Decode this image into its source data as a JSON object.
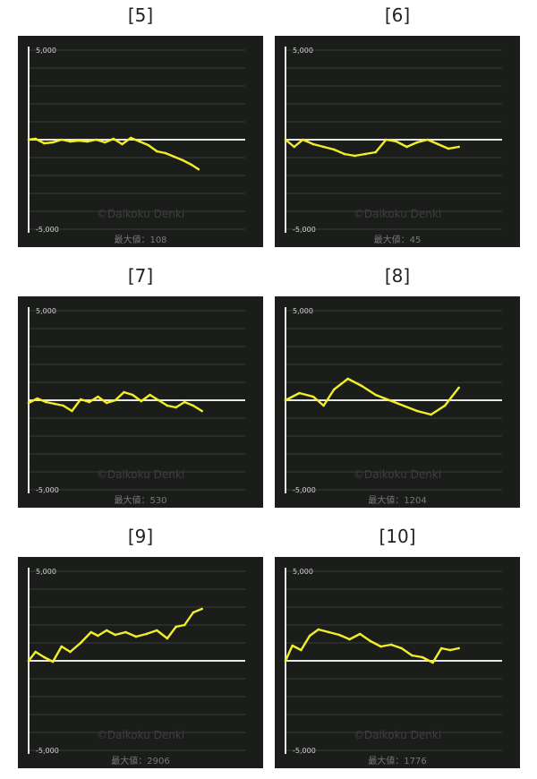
{
  "chart_data": [
    {
      "type": "line",
      "title": "[5]",
      "ylim": [
        -5000,
        5000
      ],
      "y_top_label": "5,000",
      "y_bottom_label": "-5,000",
      "watermark": "©Daikoku Denki",
      "max_label": "最大値：108",
      "series": [
        {
          "x": [
            0,
            0.04,
            0.09,
            0.14,
            0.19,
            0.24,
            0.29,
            0.34,
            0.39,
            0.44,
            0.49,
            0.54,
            0.59,
            0.64,
            0.69,
            0.74,
            0.79,
            0.84,
            0.89,
            0.94,
            0.98
          ],
          "values": [
            0,
            50,
            -200,
            -150,
            0,
            -100,
            -50,
            -100,
            0,
            -150,
            50,
            -250,
            100,
            -100,
            -300,
            -650,
            -750,
            -950,
            -1150,
            -1400,
            -1650
          ]
        }
      ]
    },
    {
      "type": "line",
      "title": "[6]",
      "ylim": [
        -5000,
        5000
      ],
      "y_top_label": "5,000",
      "y_bottom_label": "-5,000",
      "watermark": "©Daikoku Denki",
      "max_label": "最大値：45",
      "series": [
        {
          "x": [
            0,
            0.05,
            0.1,
            0.16,
            0.22,
            0.28,
            0.34,
            0.4,
            0.46,
            0.52,
            0.58,
            0.64,
            0.7,
            0.76,
            0.82,
            0.88,
            0.94,
            1.0
          ],
          "values": [
            0,
            -400,
            0,
            -250,
            -400,
            -550,
            -800,
            -900,
            -800,
            -700,
            0,
            -100,
            -400,
            -150,
            0,
            -250,
            -500,
            -400
          ]
        }
      ]
    },
    {
      "type": "line",
      "title": "[7]",
      "ylim": [
        -5000,
        5000
      ],
      "y_top_label": "5,000",
      "y_bottom_label": "-5,000",
      "watermark": "©Daikoku Denki",
      "max_label": "最大値：530",
      "series": [
        {
          "x": [
            0,
            0.05,
            0.1,
            0.15,
            0.2,
            0.25,
            0.3,
            0.35,
            0.4,
            0.45,
            0.5,
            0.55,
            0.6,
            0.65,
            0.7,
            0.75,
            0.8,
            0.85,
            0.9,
            0.95,
            1.0
          ],
          "values": [
            -150,
            100,
            -100,
            -200,
            -300,
            -600,
            50,
            -100,
            200,
            -150,
            0,
            450,
            300,
            -50,
            300,
            0,
            -300,
            -400,
            -100,
            -300,
            -600
          ]
        }
      ]
    },
    {
      "type": "line",
      "title": "[8]",
      "ylim": [
        -5000,
        5000
      ],
      "y_top_label": "5,000",
      "y_bottom_label": "-5,000",
      "watermark": "©Daikoku Denki",
      "max_label": "最大値：1204",
      "series": [
        {
          "x": [
            0,
            0.08,
            0.16,
            0.22,
            0.28,
            0.36,
            0.44,
            0.52,
            0.6,
            0.68,
            0.76,
            0.84,
            0.92,
            1.0
          ],
          "values": [
            0,
            400,
            200,
            -300,
            600,
            1200,
            800,
            300,
            0,
            -300,
            -600,
            -800,
            -300,
            700
          ]
        }
      ]
    },
    {
      "type": "line",
      "title": "[9]",
      "ylim": [
        -5000,
        5000
      ],
      "y_top_label": "5,000",
      "y_bottom_label": "-5,000",
      "watermark": "©Daikoku Denki",
      "max_label": "最大値：2906",
      "series": [
        {
          "x": [
            0,
            0.04,
            0.09,
            0.14,
            0.19,
            0.24,
            0.3,
            0.36,
            0.4,
            0.45,
            0.5,
            0.56,
            0.62,
            0.68,
            0.74,
            0.8,
            0.85,
            0.9,
            0.95,
            1.0
          ],
          "values": [
            0,
            500,
            200,
            -50,
            800,
            500,
            1000,
            1600,
            1400,
            1700,
            1450,
            1600,
            1350,
            1500,
            1700,
            1250,
            1900,
            2000,
            2700,
            2900
          ]
        }
      ]
    },
    {
      "type": "line",
      "title": "[10]",
      "ylim": [
        -5000,
        5000
      ],
      "y_top_label": "5,000",
      "y_bottom_label": "-5,000",
      "watermark": "©Daikoku Denki",
      "max_label": "最大値：1776",
      "series": [
        {
          "x": [
            0,
            0.04,
            0.09,
            0.14,
            0.19,
            0.25,
            0.31,
            0.37,
            0.43,
            0.49,
            0.55,
            0.61,
            0.67,
            0.73,
            0.79,
            0.85,
            0.9,
            0.95,
            1.0
          ],
          "values": [
            0,
            850,
            600,
            1400,
            1750,
            1600,
            1450,
            1200,
            1500,
            1100,
            800,
            900,
            700,
            300,
            200,
            -100,
            700,
            600,
            700
          ]
        }
      ]
    }
  ],
  "colors": {
    "panel_bg": "#1b1d1b",
    "grid": "#3a3c3a",
    "zero_line": "#e6e6e6",
    "axis": "#e6e6e6",
    "series": "#f2ee2a"
  }
}
